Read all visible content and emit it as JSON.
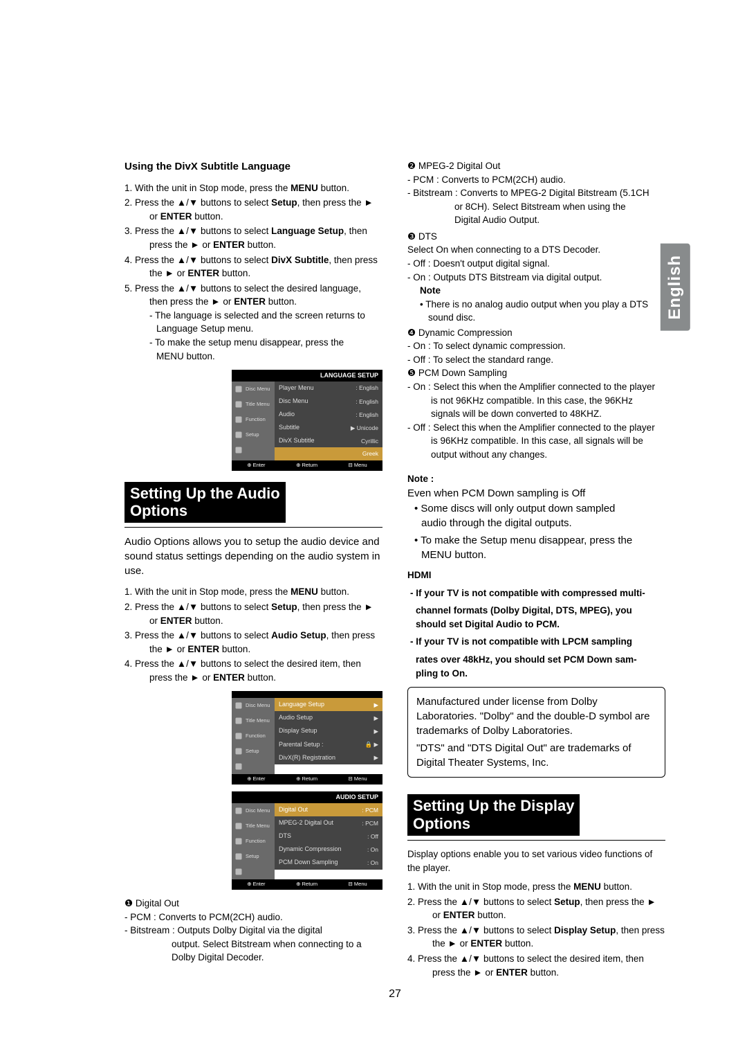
{
  "language_tab": "English",
  "page_number": "27",
  "left": {
    "sec1_heading": "Using the DivX Subtitle Language",
    "steps1": {
      "s1a": "With the unit in Stop mode, press the ",
      "s1b": "MENU",
      "s1c": " button.",
      "s2a": "Press the ▲/▼ buttons to select ",
      "s2b": "Setup",
      "s2c": ", then press the ►",
      "s2d": "or ",
      "s2e": "ENTER",
      "s2f": " button.",
      "s3a": "Press the ▲/▼ buttons to select ",
      "s3b": "Language Setup",
      "s3c": ", then",
      "s3d": "press the ► or ",
      "s3e": "ENTER",
      "s3f": " button.",
      "s4a": "Press the ▲/▼ buttons to select ",
      "s4b": "DivX Subtitle",
      "s4c": ", then press",
      "s4d": "the ► or ",
      "s4e": "ENTER",
      "s4f": " button.",
      "s5a": "Press the ▲/▼ buttons to select the desired  language,",
      "s5b": "then press the ► or ",
      "s5c": "ENTER",
      "s5d": " button.",
      "s5e": "- The language is selected and the screen returns to",
      "s5f": "Language Setup menu.",
      "s5g": "- To make the setup menu disappear, press the",
      "s5h": "MENU button."
    },
    "osd1": {
      "bar": "LANGUAGE SETUP",
      "side": [
        "Disc Menu",
        "Title Menu",
        "Function",
        "Setup",
        ""
      ],
      "rows": [
        {
          "k": "Player Menu",
          "v": ": English",
          "cls": "dark"
        },
        {
          "k": "Disc Menu",
          "v": ": English",
          "cls": "dark"
        },
        {
          "k": "Audio",
          "v": ": English",
          "cls": "dark"
        },
        {
          "k": "Subtitle",
          "v": "▶ Unicode",
          "cls": "dark hl-split"
        },
        {
          "k": "DivX Subtitle",
          "v": "Cyrillic",
          "cls": "dark"
        },
        {
          "k": "",
          "v": "Greek",
          "cls": "hl"
        }
      ],
      "footer": [
        "⊕ Enter",
        "⊕ Return",
        "⊟ Menu"
      ]
    },
    "sec2_title_l1": "Setting Up the Audio",
    "sec2_title_l2": "Options",
    "intro2": "Audio Options allows you to setup the audio device and sound status settings depending on the audio system in use.",
    "steps2": {
      "s1a": "With the unit in Stop mode, press the ",
      "s1b": "MENU",
      "s1c": " button.",
      "s2a": "Press the ▲/▼ buttons to select ",
      "s2b": "Setup",
      "s2c": ", then press the ►",
      "s2d": "or ",
      "s2e": "ENTER",
      "s2f": " button.",
      "s3a": "Press the ▲/▼ buttons to select ",
      "s3b": "Audio Setup",
      "s3c": ", then press",
      "s3d": "the ► or ",
      "s3e": "ENTER",
      "s3f": " button.",
      "s4a": "Press the ▲/▼ buttons to select the desired item, then",
      "s4b": "press the ► or ",
      "s4c": "ENTER",
      "s4d": " button."
    },
    "osd2": {
      "bar": "",
      "side": [
        "Disc Menu",
        "Title Menu",
        "Function",
        "Setup",
        ""
      ],
      "rows": [
        {
          "k": "Language Setup",
          "v": "▶",
          "cls": "hl"
        },
        {
          "k": "Audio Setup",
          "v": "▶",
          "cls": "dark"
        },
        {
          "k": "Display Setup",
          "v": "▶",
          "cls": "dark"
        },
        {
          "k": "Parental Setup :",
          "v": "🔒 ▶",
          "cls": "dark"
        },
        {
          "k": "DivX(R) Registration",
          "v": "▶",
          "cls": "dark"
        }
      ],
      "footer": [
        "⊕ Enter",
        "⊕ Return",
        "⊟ Menu"
      ]
    },
    "osd3": {
      "bar": "AUDIO SETUP",
      "side": [
        "Disc Menu",
        "Title Menu",
        "Function",
        "Setup",
        ""
      ],
      "rows": [
        {
          "k": "Digital Out",
          "v": ": PCM",
          "cls": "hl"
        },
        {
          "k": "MPEG-2 Digital Out",
          "v": ": PCM",
          "cls": "dark"
        },
        {
          "k": "DTS",
          "v": ": Off",
          "cls": "dark"
        },
        {
          "k": "Dynamic Compression",
          "v": ": On",
          "cls": "dark"
        },
        {
          "k": "PCM Down Sampling",
          "v": ": On",
          "cls": "dark"
        }
      ],
      "footer": [
        "⊕ Enter",
        "⊕ Return",
        "⊟ Menu"
      ]
    },
    "digout_num": "❶",
    "digout_t": " Digital Out",
    "digout_a": "- PCM : Converts to PCM(2CH) audio.",
    "digout_b": "- Bitstream : Outputs Dolby Digital via the digital",
    "digout_c": "output. Select Bitstream when connecting to a",
    "digout_d": "Dolby Digital Decoder."
  },
  "right": {
    "mpeg_num": "❷",
    "mpeg_t": " MPEG-2 Digital Out",
    "mpeg_a": "- PCM : Converts to PCM(2CH) audio.",
    "mpeg_b": "- Bitstream : Converts to MPEG-2 Digital Bitstream (5.1CH",
    "mpeg_c": "or 8CH). Select Bitstream when using the",
    "mpeg_d": "Digital Audio Output.",
    "dts_num": "❸",
    "dts_t": " DTS",
    "dts_a": "Select On when connecting to a DTS Decoder.",
    "dts_b": "- Off : Doesn't output digital signal.",
    "dts_c": "- On : Outputs DTS Bitstream via digital output.",
    "note_h": "Note",
    "note_a": "• There is no analog audio output when you play a DTS",
    "note_b": "sound disc.",
    "dyn_num": "❹",
    "dyn_t": " Dynamic Compression",
    "dyn_a": "- On : To select dynamic compression.",
    "dyn_b": "- Off : To select the standard range.",
    "pcm_num": "❺",
    "pcm_t": " PCM Down Sampling",
    "pcm_a": "- On : Select this when the Amplifier connected to the player",
    "pcm_b": "is not 96KHz compatible. In this case, the 96KHz",
    "pcm_c": "signals will be down converted to 48KHZ.",
    "pcm_d": "- Off : Select this when the Amplifier connected to the player",
    "pcm_e": "is 96KHz compatible. In this case, all signals will be",
    "pcm_f": "output without any changes.",
    "note2_h": "Note :",
    "note2_lead": "Even when PCM Down sampling is Off",
    "note2_b1a": "Some discs will only output down sampled",
    "note2_b1b": "audio through the digital outputs.",
    "note2_b2a": "To make the Setup menu disappear, press the",
    "note2_b2b": "MENU button.",
    "hdmi_h": "HDMI",
    "hdmi_1a": "- If your TV is not compatible with compressed multi-",
    "hdmi_1b": "channel formats (Dolby Digital, DTS, MPEG), you",
    "hdmi_1c": "should set Digital Audio to PCM.",
    "hdmi_2a": "- If your TV is not compatible with LPCM sampling",
    "hdmi_2b": "rates over 48kHz, you should set PCM Down sam-",
    "hdmi_2c": "pling to On.",
    "box_a": "Manufactured under license from Dolby Laboratories. \"Dolby\" and the double-D symbol are trademarks of Dolby Laboratories.",
    "box_b": "\"DTS\" and \"DTS Digital Out\" are trademarks of Digital Theater Systems, Inc.",
    "sec3_title_l1": "Setting Up the Display",
    "sec3_title_l2": "Options",
    "intro3": "Display options enable you to set various video functions of the player.",
    "steps3": {
      "s1a": "With the unit in Stop mode, press the ",
      "s1b": "MENU",
      "s1c": " button.",
      "s2a": "Press the ▲/▼ buttons to select ",
      "s2b": "Setup",
      "s2c": ", then press the ►",
      "s2d": "or ",
      "s2e": "ENTER",
      "s2f": " button.",
      "s3a": "Press the ▲/▼ buttons to select ",
      "s3b": "Display Setup",
      "s3c": ", then press",
      "s3d": "the ► or ",
      "s3e": "ENTER",
      "s3f": " button.",
      "s4a": "Press the ▲/▼ buttons to select the desired item, then",
      "s4b": "press the ► or ",
      "s4c": "ENTER",
      "s4d": " button."
    }
  }
}
